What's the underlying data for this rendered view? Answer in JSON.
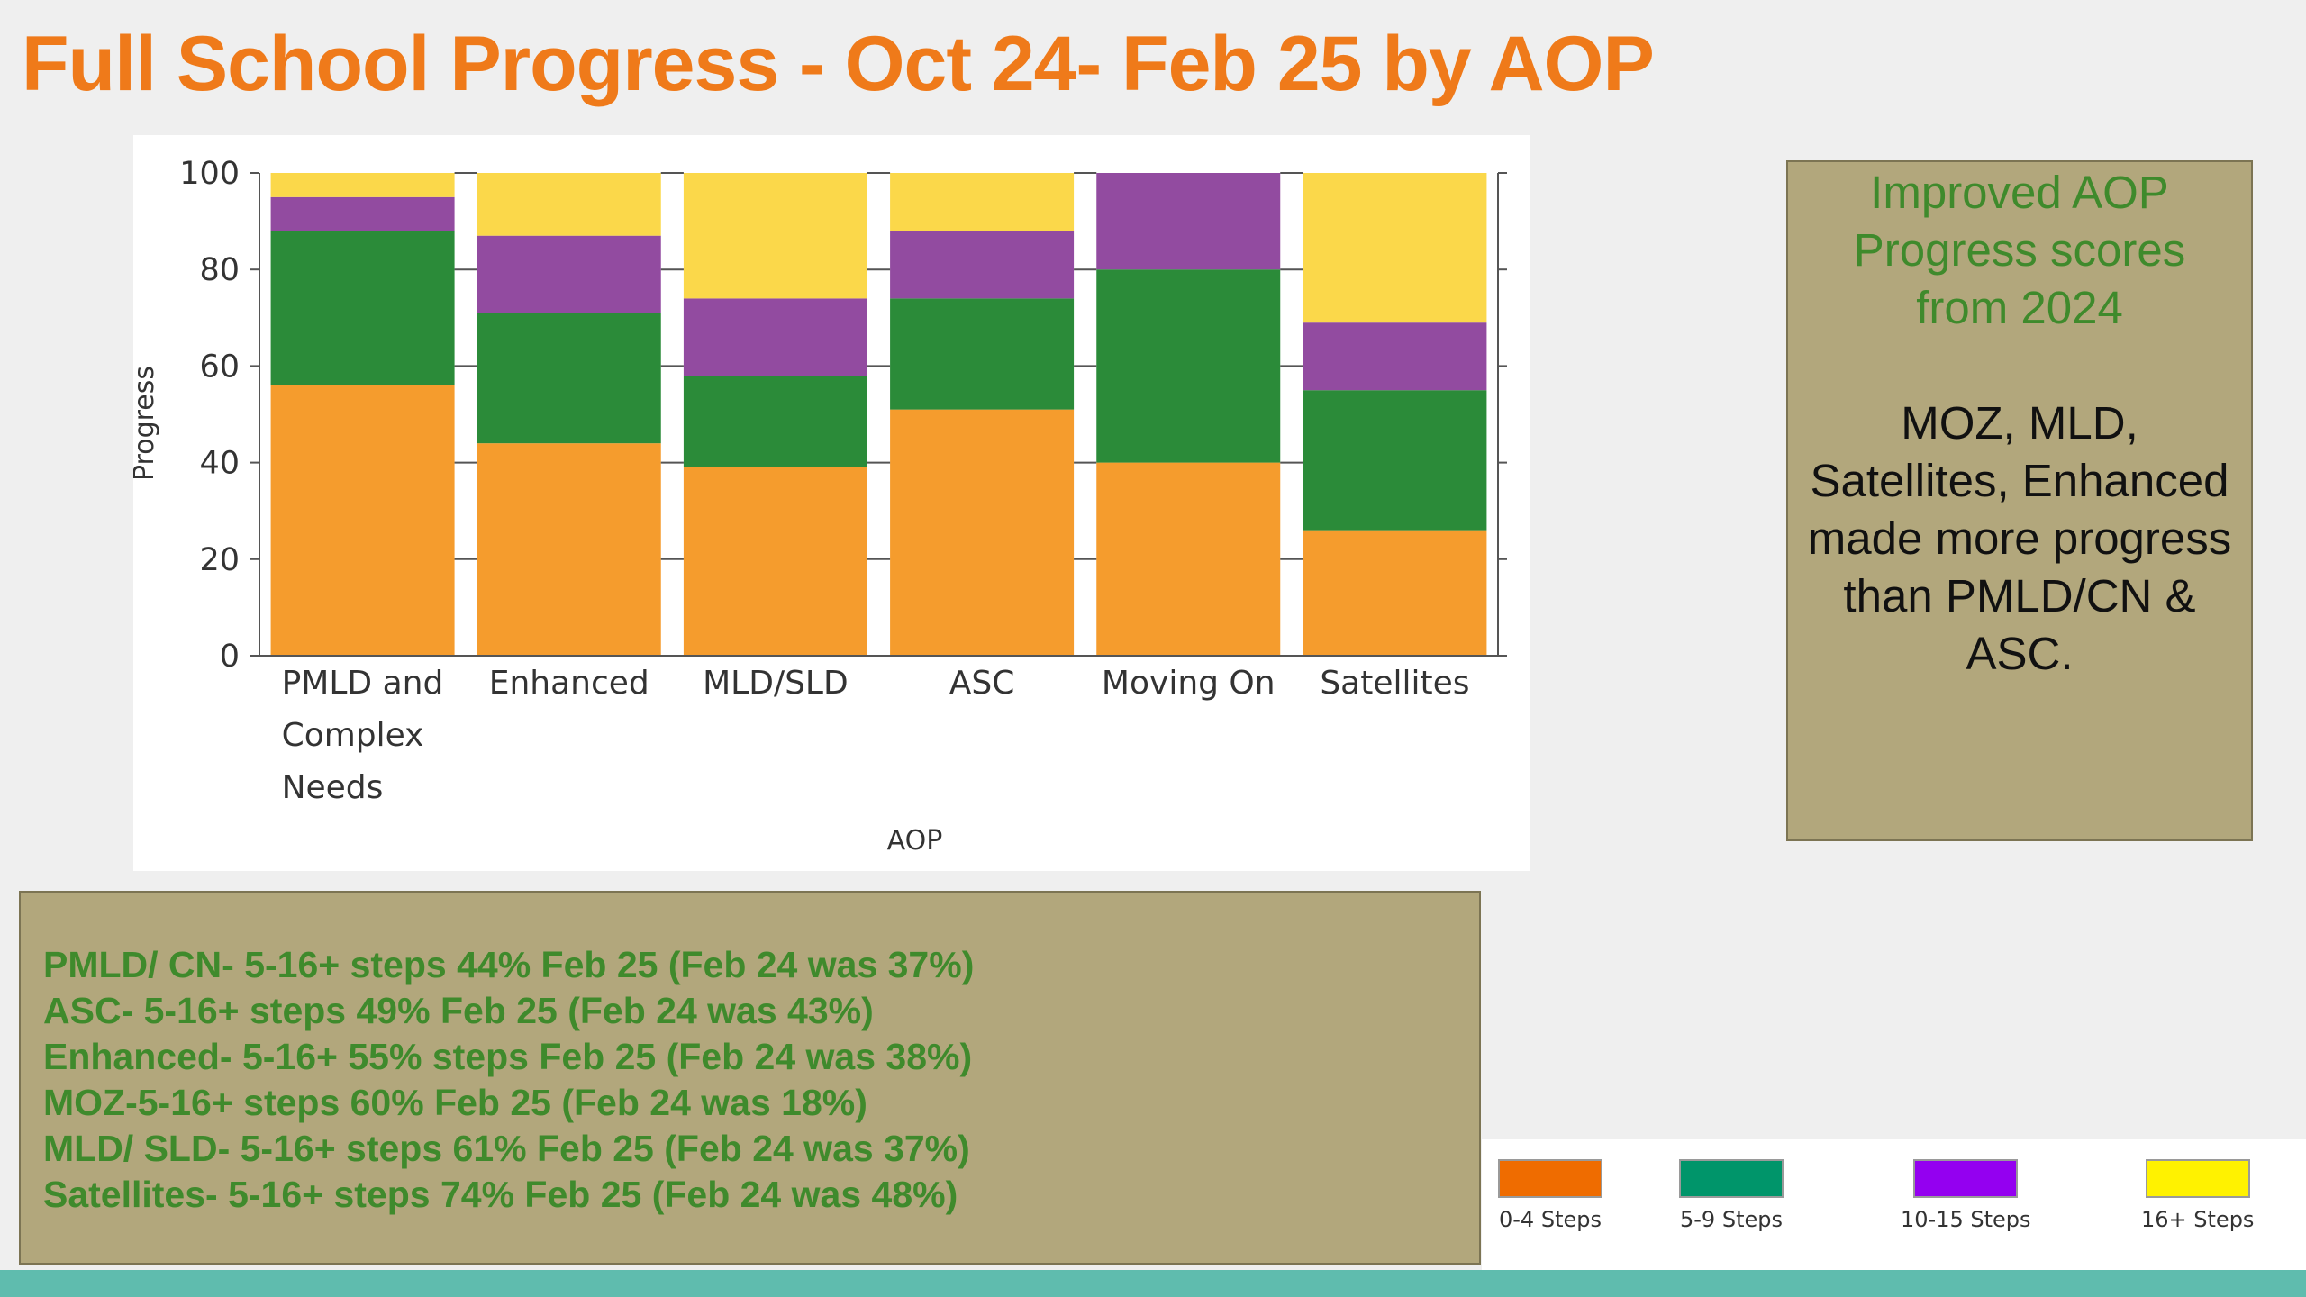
{
  "title": "Full School Progress - Oct 24- Feb 25 by AOP",
  "chart_data": {
    "type": "bar",
    "stacked": true,
    "xlabel": "AOP",
    "ylabel": "Progress",
    "ylim": [
      0,
      100
    ],
    "yticks": [
      0,
      20,
      40,
      60,
      80,
      100
    ],
    "categories": [
      [
        "PMLD and",
        "Complex",
        "Needs"
      ],
      [
        "Enhanced"
      ],
      [
        "MLD/SLD"
      ],
      [
        "ASC"
      ],
      [
        "Moving On"
      ],
      [
        "Satellites"
      ]
    ],
    "series": [
      {
        "color": "#f59c2d",
        "values": [
          56,
          44,
          39,
          51,
          40,
          26
        ]
      },
      {
        "color": "#2b8b39",
        "values": [
          32,
          27,
          19,
          23,
          40,
          29
        ]
      },
      {
        "color": "#924ba0",
        "values": [
          7,
          16,
          16,
          14,
          20,
          14
        ]
      },
      {
        "color": "#fbd84a",
        "values": [
          5,
          13,
          26,
          12,
          0,
          31
        ]
      }
    ],
    "grid": false
  },
  "note": {
    "heading": "Improved AOP Progress scores from 2024",
    "body": "MOZ, MLD, Satellites, Enhanced made more progress than PMLD/CN & ASC."
  },
  "stats": [
    "PMLD/ CN- 5-16+ steps 44% Feb 25 (Feb 24 was 37%)",
    "ASC- 5-16+ steps 49% Feb 25 (Feb 24 was 43%)",
    "Enhanced- 5-16+  55% steps Feb 25 (Feb 24 was 38%)",
    "MOZ-5-16+ steps 60% Feb 25 (Feb 24 was 18%)",
    "MLD/ SLD- 5-16+ steps 61% Feb 25 (Feb 24 was 37%)",
    "Satellites- 5-16+ steps 74% Feb 25 (Feb 24 was 48%)"
  ],
  "legend": [
    {
      "label": "0-4 Steps",
      "color": "#ef6c00"
    },
    {
      "label": "5-9 Steps",
      "color": "#00956a"
    },
    {
      "label": "10-15 Steps",
      "color": "#9400f0"
    },
    {
      "label": "16+ Steps",
      "color": "#fff200"
    }
  ]
}
